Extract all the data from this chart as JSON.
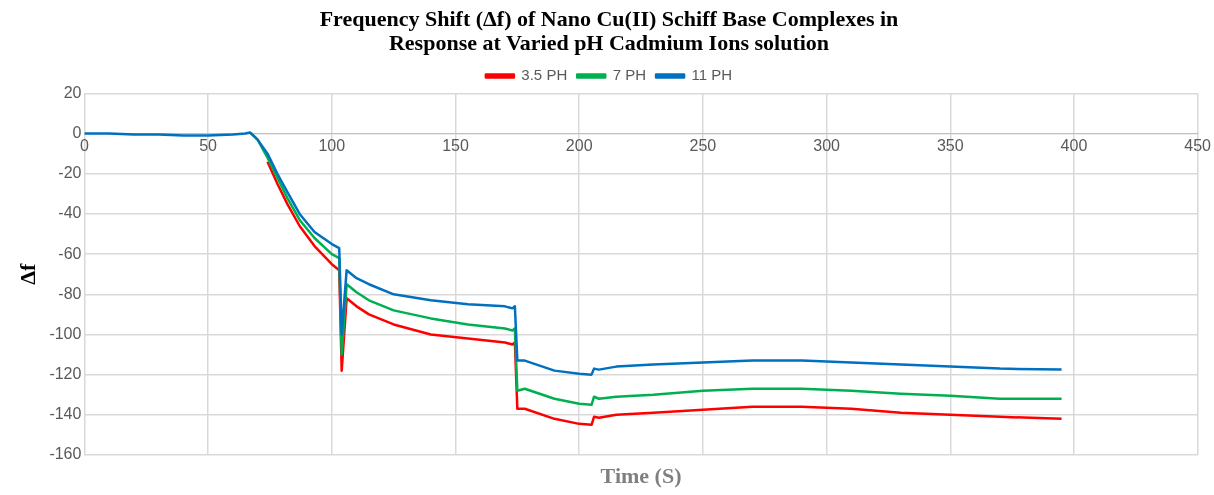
{
  "chart_data": {
    "type": "line",
    "title": "Frequency Shift (Δf) of Nano Cu(II) Schiff Base Complexes in\nResponse at Varied pH Cadmium Ions solution",
    "xlabel": "Time (S)",
    "ylabel": "Δf",
    "x": [
      0,
      10,
      20,
      30,
      40,
      50,
      60,
      65,
      67,
      70,
      74,
      78,
      82,
      87,
      93,
      100,
      103,
      104,
      106,
      110,
      115,
      125,
      140,
      155,
      170,
      173,
      174,
      175,
      178,
      190,
      200,
      205,
      206,
      208,
      215,
      230,
      250,
      270,
      290,
      310,
      330,
      350,
      370,
      395
    ],
    "series": [
      {
        "name": "3.5 PH",
        "color": "#ff0000",
        "values": [
          null,
          null,
          null,
          null,
          null,
          null,
          null,
          null,
          null,
          null,
          -14,
          -25,
          -35,
          -46,
          -56,
          -65,
          -68,
          -118,
          -82,
          -86,
          -90,
          -95,
          -100,
          -102,
          -104,
          -105,
          -104,
          -137,
          -137,
          -142,
          -144.5,
          -145,
          -141,
          -141.5,
          -140,
          -139,
          -137.5,
          -136,
          -136,
          -137,
          -139,
          -140,
          -141,
          -142
        ]
      },
      {
        "name": "7 PH",
        "color": "#00b050",
        "values": [
          null,
          null,
          null,
          null,
          null,
          null,
          null,
          null,
          0.5,
          -3,
          -12,
          -22,
          -32,
          -43,
          -52,
          -60,
          -62,
          -110,
          -75,
          -79,
          -83,
          -88,
          -92,
          -95,
          -97,
          -98,
          -97,
          -128,
          -127,
          -132,
          -134.5,
          -135,
          -131,
          -132,
          -131,
          -130,
          -128,
          -127,
          -127,
          -128,
          -129.5,
          -130.5,
          -132,
          -132
        ]
      },
      {
        "name": "11 PH",
        "color": "#0070c0",
        "values": [
          0,
          0,
          -0.5,
          -0.5,
          -1,
          -1,
          -0.5,
          0,
          0.5,
          -3,
          -10,
          -20,
          -29,
          -40,
          -49,
          -55,
          -57,
          -100,
          -68,
          -72,
          -75,
          -80,
          -83,
          -85,
          -86,
          -87,
          -86,
          -113,
          -113,
          -118,
          -119.5,
          -120,
          -117,
          -117.5,
          -116,
          -115,
          -114,
          -113,
          -113,
          -114,
          -115,
          -116,
          -117,
          -117.5
        ]
      }
    ],
    "xlim": [
      0,
      450
    ],
    "xticks": [
      0,
      50,
      100,
      150,
      200,
      250,
      300,
      350,
      400,
      450
    ],
    "ylim": [
      -160,
      20
    ],
    "yticks": [
      -160,
      -140,
      -120,
      -100,
      -80,
      -60,
      -40,
      -20,
      0,
      20
    ],
    "grid": true,
    "legend": "top",
    "marker": "none",
    "line_style": "solid"
  }
}
